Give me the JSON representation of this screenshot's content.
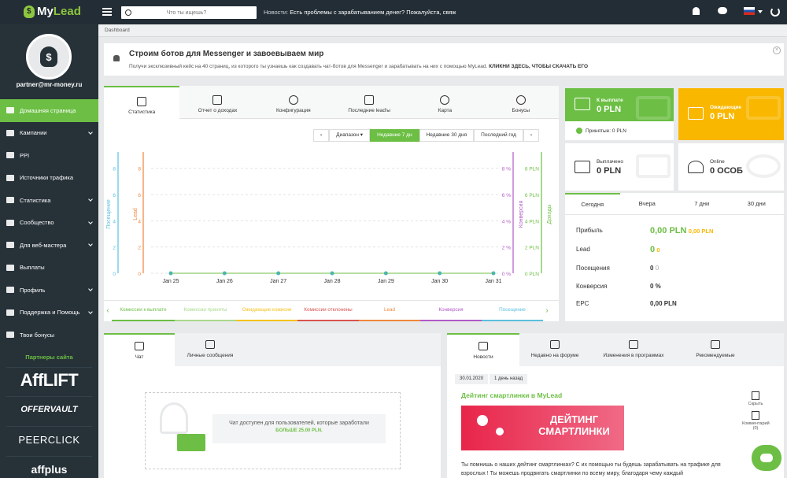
{
  "header": {
    "logo_prefix": "My",
    "logo_suffix": "Lead",
    "search_placeholder": "Что ты ищешь?",
    "news_label": "Новости:",
    "news_text": "Есть проблемы с зарабатыванием денег? Пожалуйста, свяж"
  },
  "sidebar": {
    "email": "partner@mr-money.ru",
    "items": [
      {
        "label": "Домашняя страница",
        "active": true,
        "sub": false
      },
      {
        "label": "Кампании",
        "sub": true
      },
      {
        "label": "PPI",
        "sub": false
      },
      {
        "label": "Источники трафика",
        "sub": false
      },
      {
        "label": "Статистика",
        "sub": true
      },
      {
        "label": "Сообщество",
        "sub": true
      },
      {
        "label": "Для веб-мастера",
        "sub": true
      },
      {
        "label": "Выплаты",
        "sub": false
      },
      {
        "label": "Профиль",
        "sub": true
      },
      {
        "label": "Поддержка и Помощь",
        "sub": true
      },
      {
        "label": "Твои бонусы",
        "sub": false
      }
    ],
    "partners_title": "Партнеры сайта",
    "partners": [
      "AffLIFT",
      "OFFERVAULT",
      "PEERCLICK",
      "affplus"
    ]
  },
  "breadcrumb": "Dashboard",
  "promo": {
    "title": "Строим ботов для Messenger и завоевываем мир",
    "text": "Получи эксклюзивный кейс на 40 страниц, из которого ты узнаешь как создавать чат-ботов для Messenger и зарабатывать на них с помощью MyLead.",
    "cta": "КЛИКНИ ЗДЕСЬ, ЧТОБЫ СКАЧАТЬ ЕГО",
    "close": "×"
  },
  "stats_tabs": [
    "Статистика",
    "Отчет о доходах",
    "Конфигурация",
    "Последние lead'ы",
    "Карта",
    "Бонусы"
  ],
  "range": {
    "prev": "‹",
    "dropdown": "Диапазон ▾",
    "options": [
      "Недавние 7 дн",
      "Недавние 30 дня",
      "Последний год"
    ],
    "next": "›"
  },
  "chart_data": {
    "type": "line",
    "x": [
      "Jan 25",
      "Jan 26",
      "Jan 27",
      "Jan 28",
      "Jan 29",
      "Jan 30",
      "Jan 31"
    ],
    "series": [
      {
        "name": "Посещение",
        "values": [
          0,
          0,
          0,
          0,
          0,
          0,
          0
        ],
        "color": "#5bc0de"
      },
      {
        "name": "Lead",
        "values": [
          0,
          0,
          0,
          0,
          0,
          0,
          0
        ],
        "color": "#f0873a"
      },
      {
        "name": "Конверсия",
        "values": [
          0,
          0,
          0,
          0,
          0,
          0,
          0
        ],
        "color": "#b15ac8"
      },
      {
        "name": "Доходы",
        "values": [
          0,
          0,
          0,
          0,
          0,
          0,
          0
        ],
        "color": "#6cbf44"
      }
    ],
    "y_ticks_left1": [
      "0",
      "2",
      "4",
      "6",
      "8"
    ],
    "y_ticks_left2": [
      "0",
      "2",
      "4",
      "6",
      "8"
    ],
    "y_ticks_right1": [
      "0 %",
      "2 %",
      "4 %",
      "6 %",
      "8 %"
    ],
    "y_ticks_right2": [
      "0 PLN",
      "2 PLN",
      "4 PLN",
      "6 PLN",
      "8 PLN"
    ],
    "ylim": [
      0,
      9
    ],
    "grid": true
  },
  "chart_tabs": [
    {
      "label": "Комиссии к выплате",
      "color": "#6cbf44"
    },
    {
      "label": "Комиссии приняты",
      "color": "#a8d98a"
    },
    {
      "label": "Ожидающие комисии",
      "color": "#f3c21a"
    },
    {
      "label": "Комиссии отклонены",
      "color": "#d9534f"
    },
    {
      "label": "Lead",
      "color": "#f0873a"
    },
    {
      "label": "Конверсия",
      "color": "#b15ac8"
    },
    {
      "label": "Посещение",
      "color": "#5bc0de"
    }
  ],
  "cards": {
    "payout": {
      "label": "К выплате",
      "amount": "0 PLN",
      "accepted": "Принятые: 0 PLN",
      "color": "#6cbf44"
    },
    "pending": {
      "label": "Ожидающие",
      "amount": "0 PLN",
      "color": "#f9b700"
    },
    "paid": {
      "label": "Выплачено",
      "amount": "0 PLN"
    },
    "online": {
      "label": "Online",
      "amount": "0 ОСОБ"
    }
  },
  "periods": {
    "tabs": [
      "Сегодня",
      "Вчера",
      "7 дни",
      "30 дни"
    ],
    "rows": [
      {
        "label": "Прибыль",
        "value": "0,00 PLN",
        "extra": "0,00 PLN"
      },
      {
        "label": "Lead",
        "value": "0",
        "extra": "0"
      },
      {
        "label": "Посещения",
        "value": "0",
        "extra": "0"
      },
      {
        "label": "Конверсия",
        "value": "0 %",
        "extra": ""
      },
      {
        "label": "EPC",
        "value": "0,00 PLN",
        "extra": ""
      }
    ]
  },
  "chat": {
    "tabs": [
      "Чат",
      "Личные сообщения"
    ],
    "message": "Чат доступен для пользователей, которые заработали",
    "requirement": "БОЛЬШЕ 25.00 PLN."
  },
  "news": {
    "tabs": [
      "Новости",
      "Недавно на форуме",
      "Изменения в программах",
      "Рекомендуемые"
    ],
    "date": "30.01.2020",
    "ago": "1 день назад",
    "title": "Дейтинг смартлинки в MyLead",
    "banner_line1": "ДЕЙТИНГ",
    "banner_line2": "СМАРТЛИНКИ",
    "text": "Ты помнишь о наших дейтинг смартлинках? С их помощью ты будешь зарабатывать на трафике для взрослых ! Ты можешь продвигать смартлинки по всему миру, благодаря чему каждый",
    "hide": "Скрыть",
    "comments": "Комментарий (0)"
  }
}
